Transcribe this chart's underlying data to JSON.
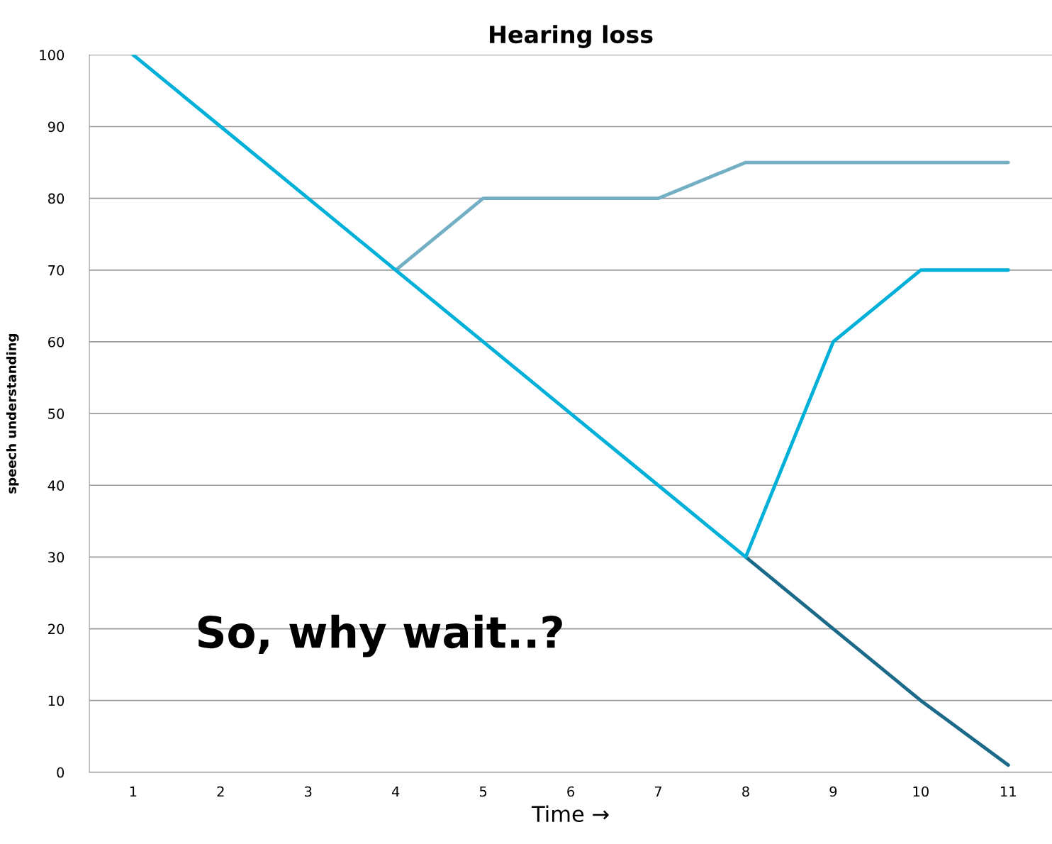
{
  "chart_data": {
    "type": "line",
    "title": "Hearing loss",
    "xlabel": "Time →",
    "ylabel": "speech understanding",
    "categories": [
      "1",
      "2",
      "3",
      "4",
      "5",
      "6",
      "7",
      "8",
      "9",
      "10",
      "11"
    ],
    "series": [
      {
        "color": "#1b6a8a",
        "values": [
          null,
          null,
          null,
          null,
          null,
          null,
          null,
          30,
          20,
          10,
          1
        ]
      },
      {
        "color": "#72afc4",
        "values": [
          null,
          null,
          null,
          70,
          80,
          80,
          80,
          85,
          85,
          85,
          85
        ]
      },
      {
        "color": "#00b0d8",
        "values": [
          100,
          90,
          80,
          70,
          60,
          50,
          40,
          30,
          60,
          70,
          70
        ]
      }
    ],
    "ylim": [
      0,
      100
    ],
    "yticks": [
      0,
      10,
      20,
      30,
      40,
      50,
      60,
      70,
      80,
      90,
      100
    ],
    "grid": "y",
    "marker": "none",
    "line_style": "solid",
    "annotations": [
      "So, why wait..?"
    ]
  }
}
